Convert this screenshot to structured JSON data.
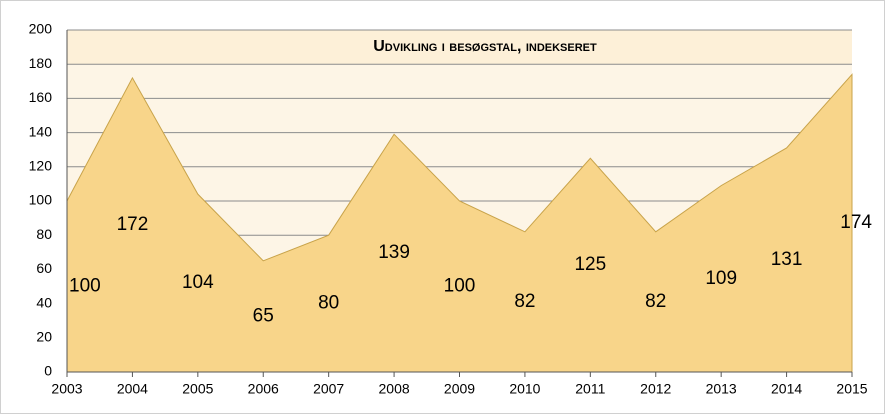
{
  "chart_data": {
    "type": "area",
    "title": "Udvikling i besøgstal, indekseret",
    "categories": [
      "2003",
      "2004",
      "2005",
      "2006",
      "2007",
      "2008",
      "2009",
      "2010",
      "2011",
      "2012",
      "2013",
      "2014",
      "2015"
    ],
    "values": [
      100,
      172,
      104,
      65,
      80,
      139,
      100,
      82,
      125,
      82,
      109,
      131,
      174
    ],
    "color": "#f8d58a",
    "ylim": [
      0,
      200
    ],
    "yticks": [
      0,
      20,
      40,
      60,
      80,
      100,
      120,
      140,
      160,
      180,
      200
    ],
    "grid": true
  }
}
